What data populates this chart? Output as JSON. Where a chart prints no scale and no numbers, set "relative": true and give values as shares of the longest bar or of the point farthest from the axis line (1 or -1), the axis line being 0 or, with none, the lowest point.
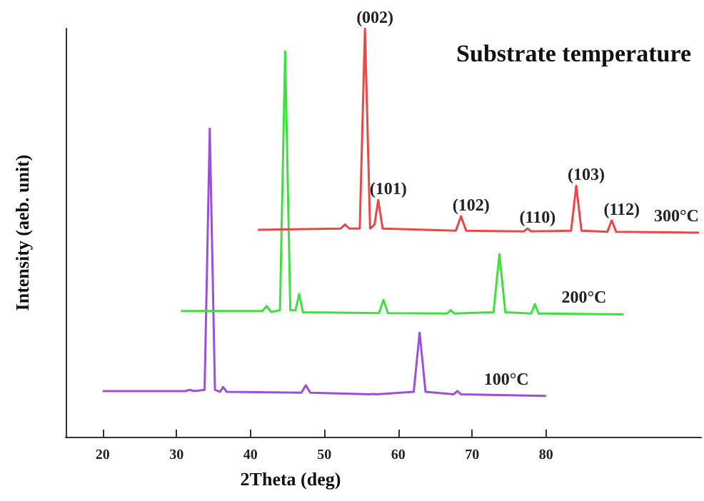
{
  "chart_data": {
    "type": "line",
    "title": "Substrate temperature",
    "xlabel": "2Theta (deg)",
    "ylabel": "Intensity (aeb. unit)",
    "relative": true,
    "xlim": [
      15,
      101
    ],
    "xticks": [
      20,
      30,
      40,
      50,
      60,
      70,
      80
    ],
    "grid": false,
    "legend": false,
    "marker": "none",
    "line_style": "solid",
    "series": [
      {
        "name": "100°C",
        "color": "#9b4fdc",
        "x": [
          20,
          31.2,
          31.8,
          32.4,
          33.8,
          34.5,
          35.2,
          35.9,
          36.3,
          36.8,
          46.9,
          47.5,
          48.1,
          56.1,
          56.6,
          57.1,
          62.1,
          62.9,
          63.7,
          67.5,
          68,
          68.5,
          80
        ],
        "values": [
          0.112,
          0.112,
          0.115,
          0.112,
          0.115,
          0.755,
          0.115,
          0.11,
          0.122,
          0.11,
          0.108,
          0.126,
          0.108,
          0.104,
          0.105,
          0.104,
          0.11,
          0.255,
          0.11,
          0.104,
          0.112,
          0.104,
          0.1
        ]
      },
      {
        "name": "200°C",
        "color": "#3ee03e",
        "x": [
          30.6,
          41.6,
          42.2,
          42.8,
          44,
          44.7,
          45.4,
          46.1,
          46.6,
          47.1,
          57.4,
          58,
          58.6,
          66.6,
          67.1,
          67.6,
          72.9,
          73.7,
          74.5,
          78,
          78.5,
          79,
          90.5
        ],
        "values": [
          0.308,
          0.308,
          0.32,
          0.306,
          0.31,
          0.944,
          0.31,
          0.31,
          0.35,
          0.305,
          0.303,
          0.335,
          0.303,
          0.302,
          0.31,
          0.302,
          0.305,
          0.447,
          0.305,
          0.302,
          0.325,
          0.302,
          0.3
        ]
      },
      {
        "name": "300°C",
        "color": "#e84848",
        "x": [
          41,
          52.2,
          52.8,
          53.4,
          54.8,
          55.5,
          56.2,
          56.8,
          57.3,
          57.9,
          67.8,
          68.5,
          69.2,
          77,
          77.5,
          78,
          83.4,
          84.1,
          84.8,
          88.3,
          88.9,
          89.5,
          100.7
        ],
        "values": [
          0.507,
          0.51,
          0.52,
          0.51,
          0.51,
          1.0,
          0.51,
          0.52,
          0.58,
          0.51,
          0.505,
          0.54,
          0.505,
          0.503,
          0.51,
          0.503,
          0.505,
          0.615,
          0.505,
          0.502,
          0.53,
          0.502,
          0.5
        ]
      }
    ],
    "annotations": [
      {
        "text": "(002)",
        "x": 55.5,
        "y": 1.0
      },
      {
        "text": "(101)",
        "x": 57.3,
        "y": 0.58
      },
      {
        "text": "(102)",
        "x": 68.5,
        "y": 0.54
      },
      {
        "text": "(110)",
        "x": 77.5,
        "y": 0.51
      },
      {
        "text": "(103)",
        "x": 84.1,
        "y": 0.615
      },
      {
        "text": "(112)",
        "x": 88.9,
        "y": 0.53
      }
    ]
  }
}
